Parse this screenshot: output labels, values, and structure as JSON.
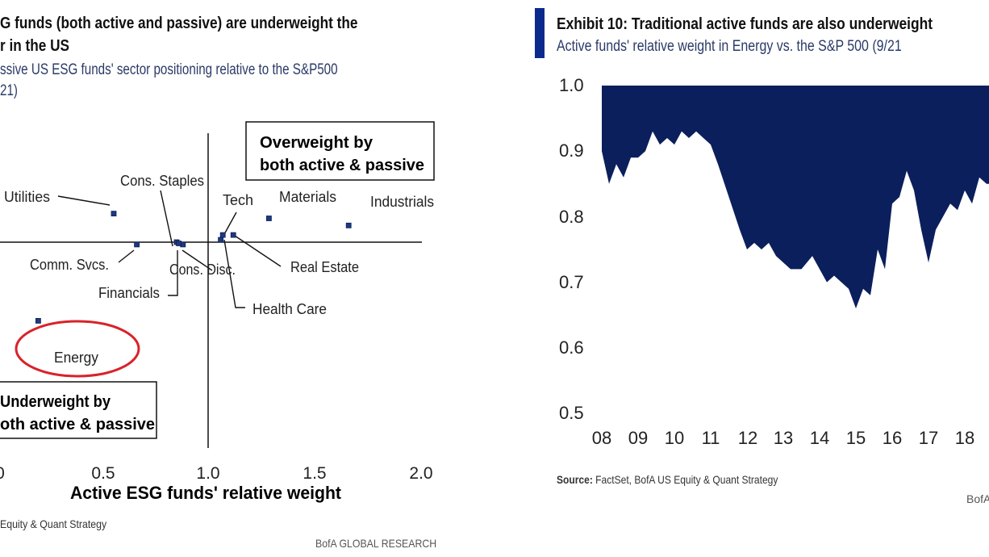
{
  "left": {
    "title_line1": "G funds (both active and passive) are underweight the",
    "title_line2": "r in the US",
    "subtitle_line1": "ssive US ESG funds' sector positioning relative to the S&P500",
    "subtitle_line2": "21)",
    "source": "Equity & Quant Strategy",
    "footer": "BofA GLOBAL RESEARCH",
    "box_top_line1": "Overweight by",
    "box_top_line2": "both active & passive",
    "box_bottom_line1": "Underweight by",
    "box_bottom_line2": "oth active & passive"
  },
  "right": {
    "title": "Exhibit 10: Traditional active funds are also underweight",
    "subtitle": "Active funds' relative weight in Energy vs. the S&P 500 (9/21",
    "source_label": "Source:",
    "source_text": "FactSet, BofA US Equity & Quant Strategy",
    "footer": "BofA"
  },
  "colors": {
    "navy": "#0b1f5c",
    "accent_blue": "#0a2a8c",
    "highlight_red": "#d9222a",
    "marker_fill": "#1f3a7a"
  },
  "chart_data": [
    {
      "type": "scatter",
      "title": "",
      "xlabel": "Active ESG funds' relative weight",
      "ylabel": "",
      "xlim": [
        0.0,
        2.0
      ],
      "xticks": [
        "0.5",
        "1.0",
        "1.5",
        "2.0"
      ],
      "partial_tick_label": "0",
      "reference_lines": {
        "x": 1.0,
        "y": 1.0
      },
      "points": [
        {
          "label": "Utilities",
          "x": 0.55,
          "y": 1.12
        },
        {
          "label": "Cons. Staples",
          "x": 0.85,
          "y": 1.0
        },
        {
          "label": "Tech",
          "x": 1.07,
          "y": 1.03
        },
        {
          "label": "Materials",
          "x": 1.29,
          "y": 1.1
        },
        {
          "label": "Industrials",
          "x": 1.67,
          "y": 1.07
        },
        {
          "label": "Real Estate",
          "x": 1.12,
          "y": 1.03
        },
        {
          "label": "Comm. Svcs.",
          "x": 0.66,
          "y": 0.99
        },
        {
          "label": "Cons. Disc.",
          "x": 0.88,
          "y": 0.99
        },
        {
          "label": "Health Care",
          "x": 1.06,
          "y": 1.01
        },
        {
          "label": "Financials",
          "x": 0.86,
          "y": 0.995
        },
        {
          "label": "Energy",
          "x": 0.19,
          "y": 0.67
        }
      ],
      "highlight": "Energy",
      "quadrant_notes": [
        "Overweight by both active & passive",
        "Underweight by both active & passive"
      ]
    },
    {
      "type": "area",
      "title": "Exhibit 10: Traditional active funds are also underweight",
      "xlabel": "",
      "ylabel": "",
      "ylim": [
        0.5,
        1.0
      ],
      "yticks": [
        "1.0",
        "0.9",
        "0.8",
        "0.7",
        "0.6",
        "0.5"
      ],
      "xticks": [
        "08",
        "09",
        "10",
        "11",
        "12",
        "13",
        "14",
        "15",
        "16",
        "17",
        "18"
      ],
      "baseline": 1.0,
      "series": [
        {
          "x": [
            2008.0,
            2008.2,
            2008.4,
            2008.6,
            2008.8,
            2009.0,
            2009.2,
            2009.4,
            2009.6,
            2009.8,
            2010.0,
            2010.2,
            2010.4,
            2010.6,
            2010.8,
            2011.0,
            2011.2,
            2011.5,
            2011.8,
            2012.0,
            2012.2,
            2012.4,
            2012.6,
            2012.8,
            2013.0,
            2013.2,
            2013.5,
            2013.8,
            2014.0,
            2014.2,
            2014.4,
            2014.6,
            2014.8,
            2015.0,
            2015.2,
            2015.4,
            2015.6,
            2015.8,
            2016.0,
            2016.2,
            2016.4,
            2016.6,
            2016.8,
            2017.0,
            2017.2,
            2017.4,
            2017.6,
            2017.8,
            2018.0,
            2018.2,
            2018.4,
            2018.6
          ],
          "values": [
            0.9,
            0.85,
            0.88,
            0.86,
            0.89,
            0.89,
            0.9,
            0.93,
            0.91,
            0.92,
            0.91,
            0.93,
            0.92,
            0.93,
            0.92,
            0.91,
            0.88,
            0.83,
            0.78,
            0.75,
            0.76,
            0.75,
            0.76,
            0.74,
            0.73,
            0.72,
            0.72,
            0.74,
            0.72,
            0.7,
            0.71,
            0.7,
            0.69,
            0.66,
            0.69,
            0.68,
            0.75,
            0.72,
            0.82,
            0.83,
            0.87,
            0.84,
            0.78,
            0.73,
            0.78,
            0.8,
            0.82,
            0.81,
            0.84,
            0.82,
            0.86,
            0.85
          ]
        }
      ]
    }
  ]
}
